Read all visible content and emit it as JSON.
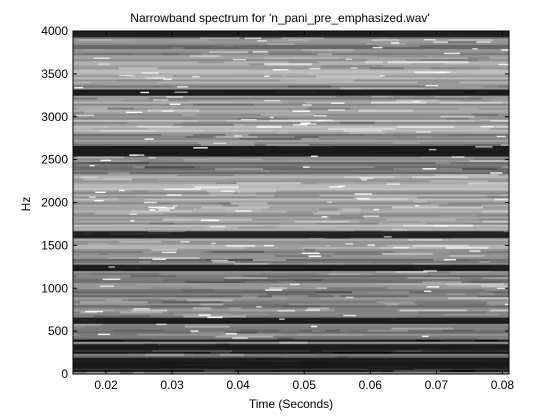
{
  "chart_data": {
    "type": "heatmap",
    "title": "Narrowband spectrum for 'n_pani_pre_emphasized.wav'",
    "xlabel": "Time (Seconds)",
    "ylabel": "Hz",
    "xlim": [
      0.015,
      0.081
    ],
    "ylim": [
      0,
      4000
    ],
    "x_ticks": [
      0.02,
      0.03,
      0.04,
      0.05,
      0.06,
      0.07,
      0.08
    ],
    "x_tick_labels": [
      "0.02",
      "0.03",
      "0.04",
      "0.05",
      "0.06",
      "0.07",
      "0.08"
    ],
    "y_ticks": [
      0,
      500,
      1000,
      1500,
      2000,
      2500,
      3000,
      3500,
      4000
    ],
    "y_tick_labels": [
      "0",
      "500",
      "1000",
      "1500",
      "2000",
      "2500",
      "3000",
      "3500",
      "4000"
    ],
    "colormap": "grayscale",
    "grid": false,
    "dark_bands_hz": [
      90,
      150,
      310,
      620,
      1240,
      1620,
      2570,
      2620,
      3280,
      3960
    ],
    "bright_regions_hz": [
      [
        1450,
        2300
      ],
      [
        2800,
        3200
      ],
      [
        3400,
        3700
      ]
    ]
  },
  "colors": {
    "background": "#ffffff",
    "axis": "#000000",
    "plot_base": "#7a7a7a",
    "highlight": "#ffffff",
    "dark_band": "#1a1a1a"
  }
}
